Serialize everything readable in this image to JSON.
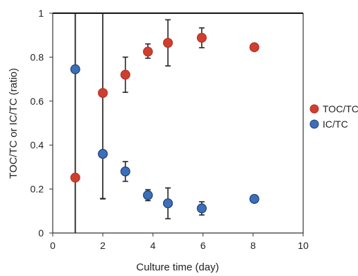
{
  "chart_data": {
    "type": "scatter",
    "title": "",
    "xlabel": "Culture time (day)",
    "ylabel": "TOC/TC or IC/TC (ratio)",
    "xlim": [
      0,
      10
    ],
    "ylim": [
      0,
      1
    ],
    "xticks": [
      0,
      2,
      4,
      6,
      8,
      10
    ],
    "yticks": [
      0,
      0.2,
      0.4,
      0.6,
      0.8,
      1
    ],
    "xtick_labels": [
      "0",
      "2",
      "4",
      "6",
      "8",
      "10"
    ],
    "ytick_labels": [
      "0",
      "0.2",
      "0.4",
      "0.6",
      "0.8",
      "1"
    ],
    "grid": false,
    "legend_position": "right",
    "series": [
      {
        "name": "TOC/TC",
        "color": "#cf3f2f",
        "stroke": "#b33224",
        "points": [
          {
            "x": 0.9,
            "y": 0.252,
            "err_low": 0.252,
            "err_high": 0.75
          },
          {
            "x": 2.0,
            "y": 0.637,
            "err_low": 0.48,
            "err_high": 0.37
          },
          {
            "x": 2.9,
            "y": 0.72,
            "err_low": 0.08,
            "err_high": 0.08
          },
          {
            "x": 3.8,
            "y": 0.825,
            "err_low": 0.03,
            "err_high": 0.035
          },
          {
            "x": 4.6,
            "y": 0.865,
            "err_low": 0.105,
            "err_high": 0.105
          },
          {
            "x": 5.95,
            "y": 0.888,
            "err_low": 0.045,
            "err_high": 0.045
          },
          {
            "x": 8.05,
            "y": 0.845,
            "err_low": 0.0,
            "err_high": 0.0
          }
        ]
      },
      {
        "name": "IC/TC",
        "color": "#3c6fb8",
        "stroke": "#1f3f78",
        "points": [
          {
            "x": 0.9,
            "y": 0.745,
            "err_low": 0.745,
            "err_high": 0.255
          },
          {
            "x": 2.0,
            "y": 0.36,
            "err_low": 0.205,
            "err_high": 0.64
          },
          {
            "x": 2.9,
            "y": 0.28,
            "err_low": 0.045,
            "err_high": 0.045
          },
          {
            "x": 3.8,
            "y": 0.172,
            "err_low": 0.025,
            "err_high": 0.025
          },
          {
            "x": 4.6,
            "y": 0.135,
            "err_low": 0.07,
            "err_high": 0.07
          },
          {
            "x": 5.95,
            "y": 0.112,
            "err_low": 0.03,
            "err_high": 0.03
          },
          {
            "x": 8.05,
            "y": 0.155,
            "err_low": 0.0,
            "err_high": 0.0
          }
        ]
      }
    ]
  }
}
